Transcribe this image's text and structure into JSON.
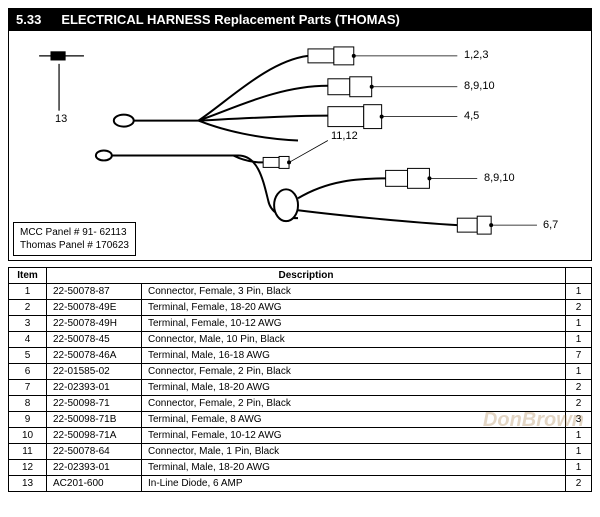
{
  "header": {
    "section_number": "5.33",
    "title": "ELECTRICAL HARNESS Replacement Parts (THOMAS)"
  },
  "panel_info": {
    "line1": "MCC Panel # 91- 62113",
    "line2": "Thomas Panel # 170623"
  },
  "callouts": {
    "c1": "1,2,3",
    "c2": "8,9,10",
    "c3": "4,5",
    "c4": "11,12",
    "c5": "8,9,10",
    "c6": "6,7",
    "c7": "13"
  },
  "table": {
    "headers": {
      "item": "Item",
      "desc": "Description"
    },
    "rows": [
      {
        "item": "1",
        "part": "22-50078-87",
        "desc": "Connector, Female, 3 Pin, Black",
        "qty": "1"
      },
      {
        "item": "2",
        "part": "22-50078-49E",
        "desc": "Terminal, Female, 18-20 AWG",
        "qty": "2"
      },
      {
        "item": "3",
        "part": "22-50078-49H",
        "desc": "Terminal, Female, 10-12 AWG",
        "qty": "1"
      },
      {
        "item": "4",
        "part": "22-50078-45",
        "desc": "Connector,  Male, 10 Pin, Black",
        "qty": "1"
      },
      {
        "item": "5",
        "part": "22-50078-46A",
        "desc": "Terminal, Male,  16-18 AWG",
        "qty": "7"
      },
      {
        "item": "6",
        "part": "22-01585-02",
        "desc": "Connector, Female, 2 Pin, Black",
        "qty": "1"
      },
      {
        "item": "7",
        "part": "22-02393-01",
        "desc": "Terminal, Male, 18-20 AWG",
        "qty": "2"
      },
      {
        "item": "8",
        "part": "22-50098-71",
        "desc": "Connector, Female, 2 Pin, Black",
        "qty": "2"
      },
      {
        "item": "9",
        "part": "22-50098-71B",
        "desc": "Terminal, Female,  8 AWG",
        "qty": "3"
      },
      {
        "item": "10",
        "part": "22-50098-71A",
        "desc": "Terminal, Female,  10-12 AWG",
        "qty": "1"
      },
      {
        "item": "11",
        "part": "22-50078-64",
        "desc": "Connector, Male, 1 Pin, Black",
        "qty": "1"
      },
      {
        "item": "12",
        "part": "22-02393-01",
        "desc": "Terminal, Male, 18-20 AWG",
        "qty": "1"
      },
      {
        "item": "13",
        "part": "AC201-600",
        "desc": "In-Line Diode, 6 AMP",
        "qty": "2"
      }
    ]
  },
  "watermark": "DonBrown",
  "styling": {
    "header_bg": "#000000",
    "header_fg": "#ffffff",
    "border_color": "#000000",
    "font_size_table": 10,
    "font_size_header": 13,
    "font_size_callout": 11
  }
}
